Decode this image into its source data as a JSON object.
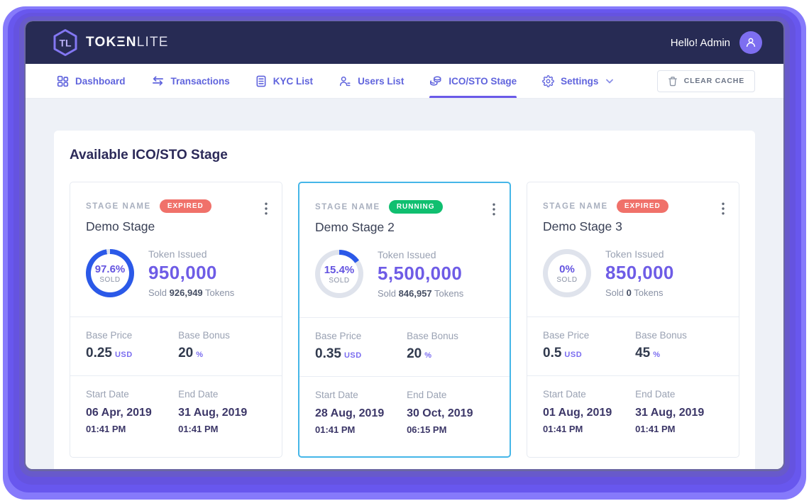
{
  "app": {
    "logo_bold": "TOKΞN",
    "logo_light": "LITE",
    "logo_mark": "TL",
    "greeting": "Hello! Admin"
  },
  "nav": {
    "items": [
      {
        "label": "Dashboard",
        "icon": "dashboard-icon",
        "active": false
      },
      {
        "label": "Transactions",
        "icon": "transactions-icon",
        "active": false
      },
      {
        "label": "KYC List",
        "icon": "kyc-list-icon",
        "active": false
      },
      {
        "label": "Users List",
        "icon": "users-list-icon",
        "active": false
      },
      {
        "label": "ICO/STO Stage",
        "icon": "ico-sto-stage-icon",
        "active": true
      },
      {
        "label": "Settings",
        "icon": "settings-icon",
        "active": false,
        "has_chevron": true
      }
    ],
    "clear_cache_label": "CLEAR CACHE"
  },
  "page": {
    "title": "Available ICO/STO Stage"
  },
  "labels": {
    "stage_name": "STAGE NAME",
    "sold": "SOLD",
    "token_issued": "Token Issued",
    "sold_prefix": "Sold",
    "tokens_suffix": "Tokens",
    "base_price": "Base Price",
    "base_bonus": "Base Bonus",
    "start_date": "Start Date",
    "end_date": "End Date"
  },
  "colors": {
    "accent_purple": "#6e5ce6",
    "ring_blue": "#2b59e8",
    "ring_track": "#dfe3ec",
    "status_expired": "#f0716a",
    "status_running": "#10bf70",
    "header_bg": "#272b54",
    "highlight_border": "#45b6e8"
  },
  "stages": [
    {
      "title": "Demo Stage",
      "status": "EXPIRED",
      "status_type": "expired",
      "percent_sold": "97.6%",
      "ring_percent": 97.6,
      "token_issued": "950,000",
      "sold_tokens": "926,949",
      "base_price": "0.25",
      "base_price_unit": "USD",
      "base_bonus": "20",
      "base_bonus_unit": "%",
      "start_date": "06 Apr, 2019",
      "start_time": "01:41 PM",
      "end_date": "31 Aug, 2019",
      "end_time": "01:41 PM",
      "highlighted": false
    },
    {
      "title": "Demo Stage 2",
      "status": "RUNNING",
      "status_type": "running",
      "percent_sold": "15.4%",
      "ring_percent": 15.4,
      "token_issued": "5,500,000",
      "sold_tokens": "846,957",
      "base_price": "0.35",
      "base_price_unit": "USD",
      "base_bonus": "20",
      "base_bonus_unit": "%",
      "start_date": "28 Aug, 2019",
      "start_time": "01:41 PM",
      "end_date": "30 Oct, 2019",
      "end_time": "06:15 PM",
      "highlighted": true
    },
    {
      "title": "Demo Stage 3",
      "status": "EXPIRED",
      "status_type": "expired",
      "percent_sold": "0%",
      "ring_percent": 0,
      "token_issued": "850,000",
      "sold_tokens": "0",
      "base_price": "0.5",
      "base_price_unit": "USD",
      "base_bonus": "45",
      "base_bonus_unit": "%",
      "start_date": "01 Aug, 2019",
      "start_time": "01:41 PM",
      "end_date": "31 Aug, 2019",
      "end_time": "01:41 PM",
      "highlighted": false
    }
  ]
}
